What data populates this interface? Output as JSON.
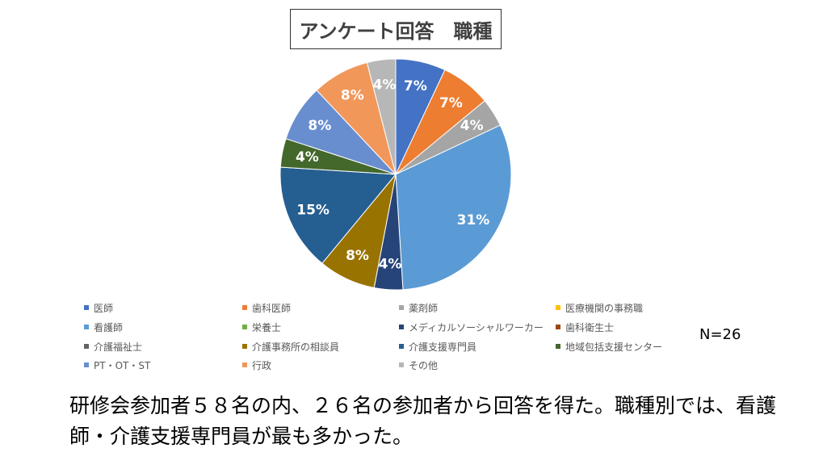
{
  "chart_data": {
    "type": "pie",
    "title": "アンケート回答　職種",
    "categories": [
      "医師",
      "歯科医師",
      "薬剤師",
      "医療機関の事務職",
      "看護師",
      "栄養士",
      "メディカルソーシャルワーカー",
      "歯科衛生士",
      "介護福祉士",
      "介護事務所の相談員",
      "介護支援専門員",
      "地域包括支援センター",
      "PT・OT・ST",
      "行政",
      "その他"
    ],
    "values": [
      7,
      7,
      4,
      0,
      31,
      0,
      4,
      0,
      0,
      8,
      15,
      4,
      8,
      8,
      4
    ],
    "labels": [
      "7%",
      "7%",
      "4%",
      "",
      "31%",
      "",
      "4%",
      "",
      "",
      "8%",
      "15%",
      "4%",
      "8%",
      "8%",
      "4%"
    ],
    "colors": [
      "#4472C4",
      "#ED7D31",
      "#A5A5A5",
      "#FFC000",
      "#5B9BD5",
      "#70AD47",
      "#264478",
      "#9E480E",
      "#636363",
      "#997300",
      "#255E91",
      "#43682B",
      "#698ED0",
      "#F1975A",
      "#B7B7B7"
    ],
    "legend_position": "bottom"
  },
  "n_label": "N=26",
  "summary": "研修会参加者５８名の内、２６名の参加者から回答を得た。職種別では、看護師・介護支援専門員が最も多かった。"
}
